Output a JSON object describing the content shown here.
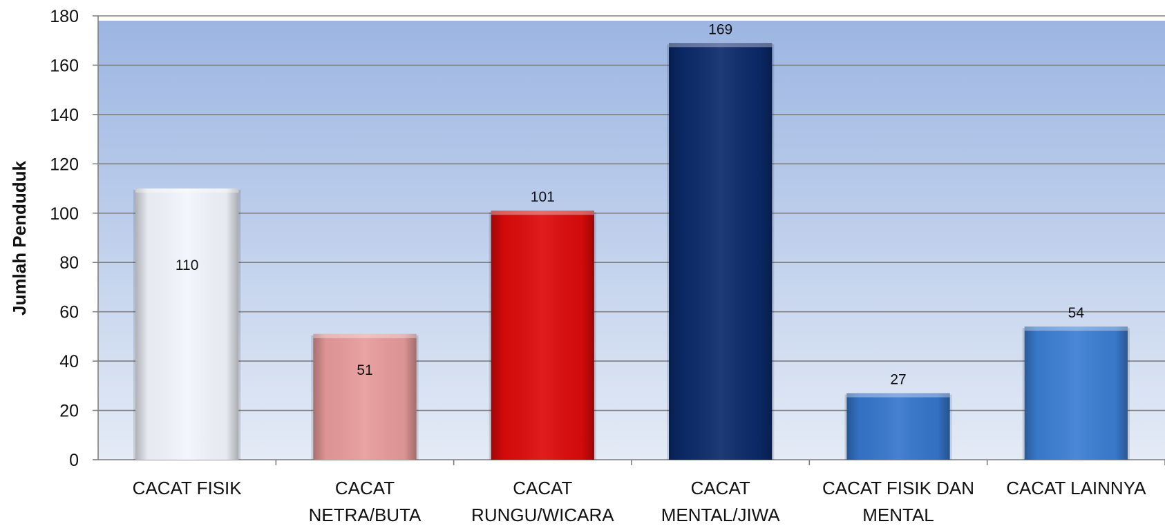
{
  "chart_data": {
    "type": "bar",
    "title": "",
    "xlabel": "",
    "ylabel": "Jumlah Penduduk",
    "ylim": [
      0,
      180
    ],
    "yticks": [
      0,
      20,
      40,
      60,
      80,
      100,
      120,
      140,
      160,
      180
    ],
    "grid": true,
    "legend": "none",
    "categories": [
      [
        "CACAT FISIK"
      ],
      [
        "CACAT",
        "NETRA/BUTA"
      ],
      [
        "CACAT",
        "RUNGU/WICARA"
      ],
      [
        "CACAT",
        "MENTAL/JIWA"
      ],
      [
        "CACAT FISIK DAN",
        "MENTAL"
      ],
      [
        "CACAT LAINNYA"
      ]
    ],
    "values": [
      110,
      51,
      101,
      169,
      27,
      54
    ],
    "bar_colors": [
      "#f2f6fd",
      "#e89b9b",
      "#dd0a0a",
      "#0b2a6b",
      "#3676cc",
      "#3b7ed3"
    ],
    "label_position": [
      "inside",
      "inside",
      "above",
      "above",
      "above",
      "above"
    ]
  }
}
